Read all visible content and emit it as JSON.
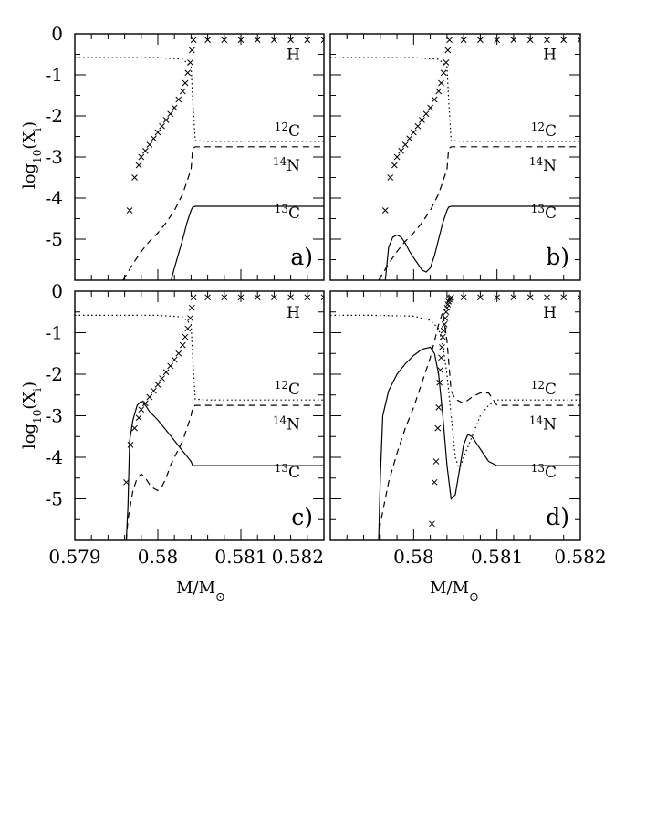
{
  "figure": {
    "y_axis_title": "log10(Xi)",
    "x_axis_title": "M/M⊙"
  },
  "chart_data": [
    {
      "type": "line",
      "panel_label": "a)",
      "xlabel": "",
      "ylabel": "log10(Xi)",
      "xlim": [
        0.579,
        0.582
      ],
      "ylim": [
        -6,
        0
      ],
      "x_ticks": [],
      "y_ticks": [
        "0",
        "-1",
        "-2",
        "-3",
        "-4",
        "-5"
      ],
      "species_labels": [
        {
          "text": "H",
          "y": -0.5
        },
        {
          "text": "12C",
          "y": -2.35
        },
        {
          "text": "14N",
          "y": -3.2
        },
        {
          "text": "13C",
          "y": -4.35
        }
      ],
      "series": [
        {
          "style": "dotted",
          "x": [
            0.579,
            0.5795,
            0.58,
            0.5803,
            0.5804,
            0.58042,
            0.58045,
            0.5806,
            0.582
          ],
          "y": [
            -0.58,
            -0.58,
            -0.58,
            -0.62,
            -0.8,
            -1.6,
            -2.6,
            -2.62,
            -2.62
          ]
        },
        {
          "style": "dashed",
          "x": [
            0.57958,
            0.5797,
            0.5798,
            0.5799,
            0.58,
            0.5801,
            0.5802,
            0.5803,
            0.5804,
            0.58042,
            0.58045,
            0.582
          ],
          "y": [
            -6.0,
            -5.6,
            -5.3,
            -5.05,
            -4.85,
            -4.6,
            -4.3,
            -3.9,
            -3.3,
            -2.8,
            -2.75,
            -2.75
          ]
        },
        {
          "style": "solid",
          "x": [
            0.58016,
            0.5802,
            0.5803,
            0.58035,
            0.5804,
            0.58042,
            0.58045,
            0.582
          ],
          "y": [
            -6.0,
            -5.7,
            -5.0,
            -4.6,
            -4.3,
            -4.22,
            -4.2,
            -4.2
          ]
        },
        {
          "style": "crosses",
          "x": [
            0.57966,
            0.57972,
            0.57977,
            0.5798,
            0.57985,
            0.5799,
            0.57995,
            0.58,
            0.58005,
            0.5801,
            0.58015,
            0.5802,
            0.58025,
            0.5803,
            0.58033,
            0.58036,
            0.58039,
            0.58041,
            0.58043,
            0.5806,
            0.5808,
            0.581,
            0.5812,
            0.5814,
            0.5816,
            0.5818,
            0.582
          ],
          "y": [
            -4.3,
            -3.5,
            -3.2,
            -3.0,
            -2.85,
            -2.7,
            -2.55,
            -2.4,
            -2.25,
            -2.1,
            -1.95,
            -1.8,
            -1.6,
            -1.4,
            -1.2,
            -0.95,
            -0.7,
            -0.4,
            -0.15,
            -0.15,
            -0.15,
            -0.15,
            -0.15,
            -0.15,
            -0.15,
            -0.15,
            -0.15
          ]
        }
      ]
    },
    {
      "type": "line",
      "panel_label": "b)",
      "xlabel": "",
      "ylabel": "",
      "xlim": [
        0.579,
        0.582
      ],
      "ylim": [
        -6,
        0
      ],
      "x_ticks": [],
      "y_ticks": [],
      "species_labels": [
        {
          "text": "H",
          "y": -0.5
        },
        {
          "text": "12C",
          "y": -2.35
        },
        {
          "text": "14N",
          "y": -3.2
        },
        {
          "text": "13C",
          "y": -4.35
        }
      ],
      "series": [
        {
          "style": "dotted",
          "x": [
            0.579,
            0.5795,
            0.58,
            0.5803,
            0.5804,
            0.58042,
            0.58045,
            0.5806,
            0.582
          ],
          "y": [
            -0.58,
            -0.58,
            -0.58,
            -0.62,
            -0.8,
            -1.6,
            -2.6,
            -2.62,
            -2.62
          ]
        },
        {
          "style": "dashed",
          "x": [
            0.57958,
            0.5797,
            0.5798,
            0.5799,
            0.58,
            0.5801,
            0.5802,
            0.5803,
            0.5804,
            0.58042,
            0.58045,
            0.582
          ],
          "y": [
            -6.0,
            -5.6,
            -5.3,
            -5.05,
            -4.85,
            -4.6,
            -4.3,
            -3.9,
            -3.3,
            -2.8,
            -2.75,
            -2.75
          ]
        },
        {
          "style": "solid",
          "x": [
            0.57966,
            0.57968,
            0.5797,
            0.57975,
            0.5798,
            0.57985,
            0.5799,
            0.57995,
            0.58,
            0.58005,
            0.5801,
            0.58015,
            0.5802,
            0.58025,
            0.5803,
            0.58035,
            0.5804,
            0.58042,
            0.58045,
            0.582
          ],
          "y": [
            -6.0,
            -5.6,
            -5.2,
            -4.95,
            -4.9,
            -4.95,
            -5.1,
            -5.3,
            -5.45,
            -5.6,
            -5.75,
            -5.8,
            -5.7,
            -5.4,
            -5.0,
            -4.6,
            -4.3,
            -4.22,
            -4.2,
            -4.2
          ]
        },
        {
          "style": "crosses",
          "x": [
            0.57966,
            0.57972,
            0.57977,
            0.5798,
            0.57985,
            0.5799,
            0.57995,
            0.58,
            0.58005,
            0.5801,
            0.58015,
            0.5802,
            0.58025,
            0.5803,
            0.58033,
            0.58036,
            0.58039,
            0.58041,
            0.58043,
            0.5806,
            0.5808,
            0.581,
            0.5812,
            0.5814,
            0.5816,
            0.5818,
            0.582
          ],
          "y": [
            -4.3,
            -3.5,
            -3.2,
            -3.0,
            -2.85,
            -2.7,
            -2.55,
            -2.4,
            -2.25,
            -2.1,
            -1.95,
            -1.8,
            -1.6,
            -1.4,
            -1.2,
            -0.95,
            -0.7,
            -0.4,
            -0.15,
            -0.15,
            -0.15,
            -0.15,
            -0.15,
            -0.15,
            -0.15,
            -0.15,
            -0.15
          ]
        }
      ]
    },
    {
      "type": "line",
      "panel_label": "c)",
      "xlabel": "M/M⊙",
      "ylabel": "log10(Xi)",
      "xlim": [
        0.579,
        0.582
      ],
      "ylim": [
        -6,
        0
      ],
      "x_ticks": [
        "0.579",
        "0.58",
        "0.581",
        "0.582"
      ],
      "y_ticks": [
        "0",
        "-1",
        "-2",
        "-3",
        "-4",
        "-5"
      ],
      "species_labels": [
        {
          "text": "H",
          "y": -0.5
        },
        {
          "text": "12C",
          "y": -2.35
        },
        {
          "text": "14N",
          "y": -3.2
        },
        {
          "text": "13C",
          "y": -4.35
        }
      ],
      "series": [
        {
          "style": "dotted",
          "x": [
            0.579,
            0.5795,
            0.58,
            0.5803,
            0.5804,
            0.58042,
            0.58045,
            0.5806,
            0.582
          ],
          "y": [
            -0.58,
            -0.58,
            -0.58,
            -0.62,
            -0.8,
            -1.6,
            -2.6,
            -2.62,
            -2.62
          ]
        },
        {
          "style": "dashed",
          "x": [
            0.57962,
            0.57964,
            0.5797,
            0.57975,
            0.5798,
            0.57985,
            0.5799,
            0.57995,
            0.58,
            0.58005,
            0.5801,
            0.58015,
            0.5802,
            0.58025,
            0.5803,
            0.58035,
            0.5804,
            0.58042,
            0.58045,
            0.582
          ],
          "y": [
            -6.0,
            -5.5,
            -4.8,
            -4.5,
            -4.4,
            -4.5,
            -4.65,
            -4.75,
            -4.8,
            -4.7,
            -4.5,
            -4.2,
            -4.0,
            -3.8,
            -3.6,
            -3.3,
            -3.0,
            -2.8,
            -2.75,
            -2.75
          ]
        },
        {
          "style": "solid",
          "x": [
            0.57962,
            0.57964,
            0.57966,
            0.5797,
            0.57975,
            0.5798,
            0.57985,
            0.5799,
            0.58,
            0.5801,
            0.5802,
            0.5803,
            0.5804,
            0.58042,
            0.58045,
            0.582
          ],
          "y": [
            -6.0,
            -5.2,
            -3.6,
            -3.1,
            -2.75,
            -2.65,
            -2.75,
            -2.9,
            -3.1,
            -3.35,
            -3.6,
            -3.85,
            -4.1,
            -4.2,
            -4.2,
            -4.2
          ]
        },
        {
          "style": "crosses",
          "x": [
            0.57962,
            0.57967,
            0.57972,
            0.57977,
            0.5798,
            0.57985,
            0.5799,
            0.57995,
            0.58,
            0.58005,
            0.5801,
            0.58015,
            0.5802,
            0.58025,
            0.5803,
            0.58033,
            0.58036,
            0.58039,
            0.58041,
            0.58043,
            0.5806,
            0.5808,
            0.581,
            0.5812,
            0.5814,
            0.5816,
            0.5818,
            0.582
          ],
          "y": [
            -4.6,
            -3.7,
            -3.3,
            -3.05,
            -2.85,
            -2.7,
            -2.55,
            -2.4,
            -2.25,
            -2.1,
            -1.95,
            -1.8,
            -1.65,
            -1.5,
            -1.3,
            -1.1,
            -0.9,
            -0.65,
            -0.4,
            -0.15,
            -0.15,
            -0.15,
            -0.15,
            -0.15,
            -0.15,
            -0.15,
            -0.15,
            -0.15
          ]
        }
      ]
    },
    {
      "type": "line",
      "panel_label": "d)",
      "xlabel": "M/M⊙",
      "ylabel": "",
      "xlim": [
        0.579,
        0.582
      ],
      "ylim": [
        -6,
        0
      ],
      "x_ticks": [
        "0.58",
        "0.581",
        "0.582"
      ],
      "y_ticks": [],
      "species_labels": [
        {
          "text": "H",
          "y": -0.5
        },
        {
          "text": "12C",
          "y": -2.35
        },
        {
          "text": "14N",
          "y": -3.2
        },
        {
          "text": "13C",
          "y": -4.35
        }
      ],
      "series": [
        {
          "style": "dotted",
          "x": [
            0.579,
            0.5795,
            0.58,
            0.5802,
            0.5803,
            0.58035,
            0.5804,
            0.58045,
            0.5805,
            0.58055,
            0.5806,
            0.5807,
            0.5808,
            0.5809,
            0.581,
            0.582
          ],
          "y": [
            -0.58,
            -0.58,
            -0.6,
            -0.7,
            -0.9,
            -1.3,
            -2.0,
            -3.0,
            -4.0,
            -4.3,
            -4.0,
            -3.5,
            -3.0,
            -2.75,
            -2.62,
            -2.62
          ]
        },
        {
          "style": "dashed",
          "x": [
            0.57958,
            0.5796,
            0.5797,
            0.5798,
            0.5799,
            0.58,
            0.5801,
            0.5802,
            0.58025,
            0.5803,
            0.58035,
            0.5804,
            0.58045,
            0.5805,
            0.5806,
            0.5807,
            0.5808,
            0.5809,
            0.581,
            0.582
          ],
          "y": [
            -6.0,
            -5.6,
            -4.6,
            -3.9,
            -3.3,
            -2.8,
            -2.2,
            -1.6,
            -1.2,
            -0.8,
            -0.5,
            -1.2,
            -2.4,
            -2.6,
            -2.7,
            -2.55,
            -2.45,
            -2.45,
            -2.75,
            -2.75
          ]
        },
        {
          "style": "solid",
          "x": [
            0.57958,
            0.5796,
            0.57963,
            0.5797,
            0.5798,
            0.5799,
            0.58,
            0.5801,
            0.5802,
            0.58025,
            0.5803,
            0.58035,
            0.5804,
            0.58045,
            0.5805,
            0.58055,
            0.5806,
            0.58065,
            0.5807,
            0.5808,
            0.5809,
            0.581,
            0.582
          ],
          "y": [
            -6.0,
            -4.5,
            -3.0,
            -2.4,
            -2.0,
            -1.75,
            -1.55,
            -1.4,
            -1.35,
            -1.5,
            -2.0,
            -3.0,
            -4.2,
            -5.0,
            -4.9,
            -4.3,
            -3.7,
            -3.45,
            -3.5,
            -3.8,
            -4.1,
            -4.2,
            -4.2
          ]
        },
        {
          "style": "crosses",
          "x": [
            0.58022,
            0.58025,
            0.58027,
            0.58029,
            0.5803,
            0.58031,
            0.58032,
            0.58033,
            0.58034,
            0.58035,
            0.58036,
            0.58037,
            0.58038,
            0.58039,
            0.5804,
            0.58041,
            0.58042,
            0.58043,
            0.58044,
            0.58045,
            0.5806,
            0.5808,
            0.581,
            0.5812,
            0.5814,
            0.5816,
            0.5818,
            0.582
          ],
          "y": [
            -5.6,
            -4.6,
            -4.1,
            -3.3,
            -2.8,
            -2.2,
            -1.9,
            -1.6,
            -1.35,
            -1.1,
            -0.95,
            -0.8,
            -0.65,
            -0.5,
            -0.4,
            -0.32,
            -0.25,
            -0.2,
            -0.17,
            -0.15,
            -0.15,
            -0.15,
            -0.15,
            -0.15,
            -0.15,
            -0.15,
            -0.15,
            -0.15
          ]
        }
      ]
    }
  ]
}
